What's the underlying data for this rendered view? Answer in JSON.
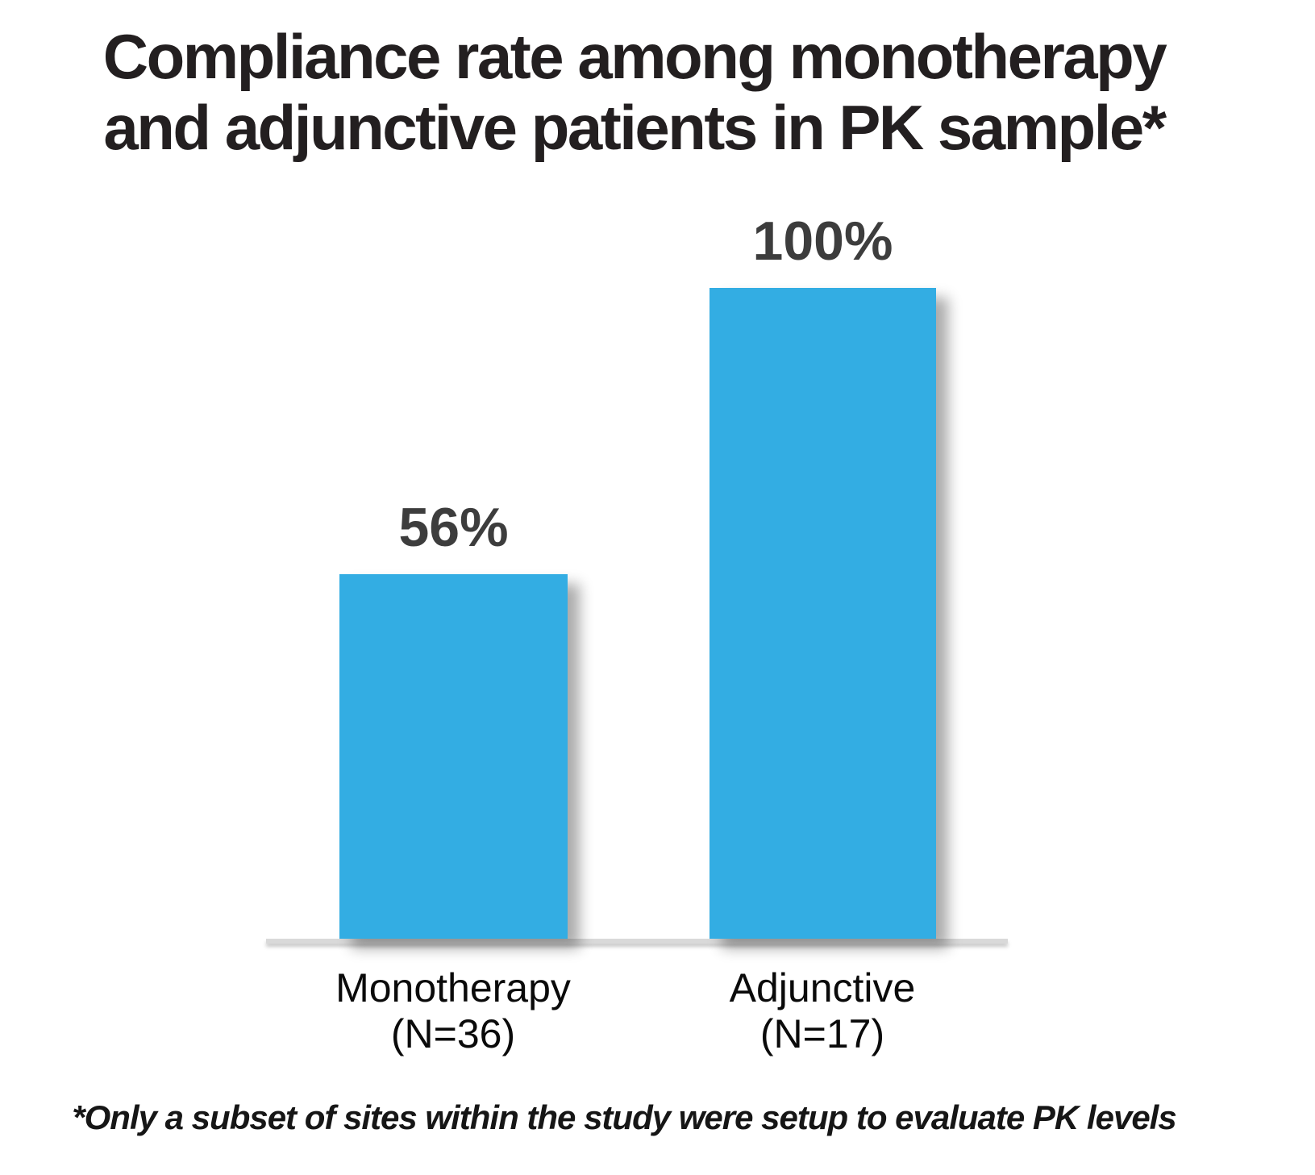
{
  "chart_data": {
    "type": "bar",
    "title": "Compliance rate among monotherapy and adjunctive patients in PK sample*",
    "categories": [
      "Monotherapy (N=36)",
      "Adjunctive (N=17)"
    ],
    "values": [
      56,
      100
    ],
    "value_labels": [
      "56%",
      "100%"
    ],
    "xlabel": "",
    "ylabel": "",
    "ylim": [
      0,
      100
    ],
    "grid": false,
    "legend": false,
    "y_axis_visible": false,
    "bar_color": "#33ADE3",
    "value_label_color": "#3D3D3D",
    "axis_line_color": "#D9D9D9",
    "footnote": "*Only a subset of sites within the study were setup to evaluate PK levels"
  },
  "title": {
    "lines": [
      "Compliance rate among monotherapy",
      "and adjunctive patients in PK sample*"
    ]
  },
  "bars": [
    {
      "name": "Monotherapy",
      "n": "(N=36)",
      "value": 56,
      "value_label": "56%"
    },
    {
      "name": "Adjunctive",
      "n": "(N=17)",
      "value": 100,
      "value_label": "100%"
    }
  ],
  "footnote": {
    "text": "*Only a subset of sites within the study were setup to evaluate PK levels"
  },
  "colors": {
    "bar": "#33ADE3",
    "value_label": "#3D3D3D",
    "title": "#231F20",
    "axis_line": "#D9D9D9",
    "background": "#FFFFFF"
  }
}
